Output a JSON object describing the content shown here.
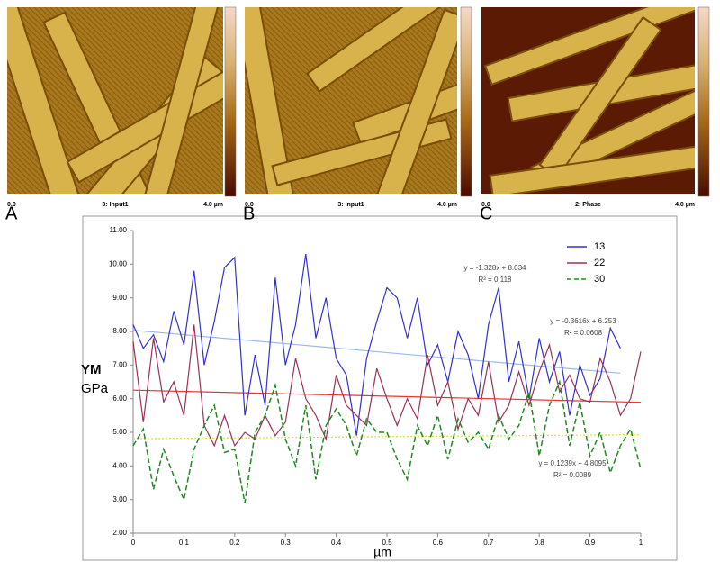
{
  "panels": [
    {
      "letter": "A",
      "axis_start": "0.0",
      "channel": "3: Input1",
      "axis_end": "4.0 µm"
    },
    {
      "letter": "B",
      "axis_start": "0.0",
      "channel": "3: Input1",
      "axis_end": "4.0 µm"
    },
    {
      "letter": "C",
      "axis_start": "0.0",
      "channel": "2: Phase",
      "axis_end": "4.0 µm"
    }
  ],
  "chart_data": {
    "type": "line",
    "y_label_title": "YM",
    "y_label_unit": "GPa",
    "x_label": "µm",
    "x": [
      0,
      0.02,
      0.04,
      0.06,
      0.08,
      0.1,
      0.12,
      0.14,
      0.16,
      0.18,
      0.2,
      0.22,
      0.24,
      0.26,
      0.28,
      0.3,
      0.32,
      0.34,
      0.36,
      0.38,
      0.4,
      0.42,
      0.44,
      0.46,
      0.48,
      0.5,
      0.52,
      0.54,
      0.56,
      0.58,
      0.6,
      0.62,
      0.64,
      0.66,
      0.68,
      0.7,
      0.72,
      0.74,
      0.76,
      0.78,
      0.8,
      0.82,
      0.84,
      0.86,
      0.88,
      0.9,
      0.92,
      0.94,
      0.96,
      0.98,
      1
    ],
    "series": [
      {
        "name": "13",
        "color": "#3333cc",
        "dashed": false,
        "values": [
          8.2,
          7.5,
          7.9,
          7.1,
          8.6,
          7.6,
          9.8,
          7.0,
          8.3,
          9.9,
          10.2,
          5.5,
          7.3,
          5.8,
          9.6,
          7.0,
          8.2,
          10.3,
          7.8,
          9.0,
          7.2,
          6.7,
          4.9,
          7.2,
          8.3,
          9.3,
          9.0,
          7.8,
          9.0,
          7.0,
          7.6,
          6.5,
          8.0,
          7.3,
          6.0,
          8.2,
          9.3,
          6.5,
          7.7,
          6.0,
          7.8,
          6.5,
          7.4,
          5.5,
          7.0,
          6.1,
          6.6,
          8.1,
          7.5,
          null,
          null
        ]
      },
      {
        "name": "22",
        "color": "#993355",
        "dashed": false,
        "values": [
          7.7,
          5.3,
          7.8,
          5.9,
          6.5,
          5.5,
          8.2,
          5.2,
          4.6,
          5.5,
          4.6,
          5.0,
          4.8,
          5.5,
          4.9,
          5.3,
          7.2,
          6.0,
          5.5,
          4.8,
          6.7,
          5.8,
          5.5,
          5.2,
          6.9,
          6.0,
          5.2,
          6.0,
          5.4,
          7.3,
          5.8,
          6.5,
          5.1,
          6.0,
          5.5,
          7.1,
          5.3,
          5.8,
          6.8,
          5.8,
          6.8,
          7.6,
          6.2,
          6.7,
          6.0,
          5.9,
          7.2,
          6.5,
          5.5,
          6.0,
          7.4
        ]
      },
      {
        "name": "30",
        "color": "#228822",
        "dashed": true,
        "values": [
          4.6,
          5.1,
          3.3,
          4.5,
          3.7,
          3.0,
          4.5,
          5.2,
          5.8,
          4.4,
          4.5,
          2.9,
          5.0,
          5.5,
          6.4,
          4.8,
          4.0,
          5.8,
          3.6,
          5.2,
          5.7,
          5.2,
          4.3,
          5.4,
          5.0,
          5.0,
          4.2,
          3.6,
          5.2,
          4.6,
          5.5,
          4.2,
          5.4,
          4.7,
          5.0,
          4.5,
          5.5,
          4.8,
          5.2,
          6.2,
          4.3,
          5.8,
          6.5,
          4.6,
          5.9,
          4.3,
          5.0,
          3.8,
          4.6,
          5.1,
          3.9
        ]
      }
    ],
    "trendlines": [
      {
        "color": "#99bbee",
        "dotted": false,
        "x": [
          0,
          0.96
        ],
        "values": [
          8.034,
          6.759
        ],
        "equation": "y = -1.328x + 8.034",
        "r2": "R² = 0.118"
      },
      {
        "color": "#ee3333",
        "dotted": false,
        "x": [
          0,
          1
        ],
        "values": [
          6.253,
          5.891
        ],
        "equation": "y = -0.3616x + 6.253",
        "r2": "R² = 0.0608"
      },
      {
        "color": "#dddd33",
        "dotted": true,
        "x": [
          0,
          1
        ],
        "values": [
          4.81,
          4.93
        ],
        "equation": "y = 0.1239x + 4.8095",
        "r2": "R² = 0.0089"
      }
    ],
    "xlim": [
      0,
      1
    ],
    "xticks": [
      0,
      0.1,
      0.2,
      0.3,
      0.4,
      0.5,
      0.6,
      0.7,
      0.8,
      0.9,
      1
    ],
    "ylim": [
      2,
      11
    ],
    "yticks": [
      {
        "value": 2,
        "label": "2.00"
      },
      {
        "value": 3,
        "label": "3.00"
      },
      {
        "value": 4,
        "label": "4.00"
      },
      {
        "value": 5,
        "label": "5.00"
      },
      {
        "value": 6,
        "label": "6.00"
      },
      {
        "value": 7,
        "label": "7.00"
      },
      {
        "value": 8,
        "label": "8.00"
      },
      {
        "value": 9,
        "label": "9.00"
      },
      {
        "value": 10,
        "label": "10.00"
      },
      {
        "value": 11,
        "label": "11.00"
      }
    ],
    "legend": "top-right"
  }
}
